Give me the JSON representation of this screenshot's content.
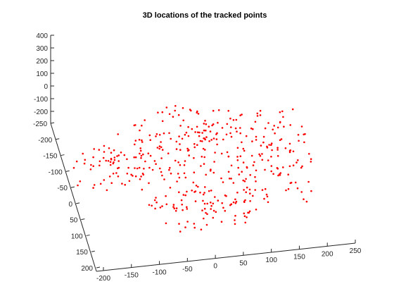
{
  "chart_data": {
    "type": "scatter",
    "title": "3D locations of the tracked points",
    "xlabel": "",
    "ylabel": "",
    "zlabel": "",
    "grid": false,
    "marker_color": "#ff0000",
    "axes": {
      "z_ticks": [
        400,
        300,
        200,
        100,
        0,
        -100,
        -200
      ],
      "y_ticks": [
        -250,
        -200,
        -150,
        -100,
        -50,
        0,
        50,
        100,
        150,
        200
      ],
      "x_ticks": [
        -200,
        -150,
        -100,
        -50,
        0,
        50,
        100,
        150,
        200,
        250
      ],
      "zlim": [
        -250,
        400
      ],
      "ylim": [
        -250,
        200
      ],
      "xlim": [
        -200,
        250
      ]
    },
    "series": [
      {
        "name": "",
        "points_screen_approx": []
      }
    ]
  }
}
